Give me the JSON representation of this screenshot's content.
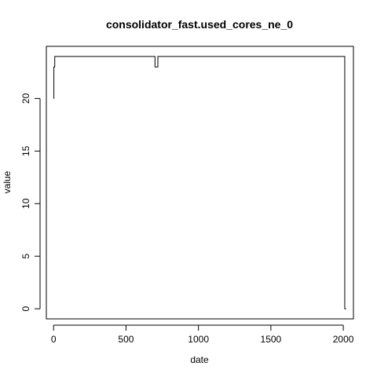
{
  "chart_data": {
    "type": "line",
    "title": "consolidator_fast.used_cores_ne_0",
    "xlabel": "date",
    "ylabel": "value",
    "xlim": [
      -50,
      2070
    ],
    "ylim": [
      -0.96,
      24.96
    ],
    "x_ticks": [
      0,
      500,
      1000,
      1500,
      2000
    ],
    "y_ticks": [
      0,
      5,
      10,
      15,
      20
    ],
    "grid": false,
    "legend": "none",
    "line_style": "step",
    "series": [
      {
        "x": [
          0,
          2,
          8,
          700,
          720,
          2000,
          2010,
          2020
        ],
        "y": [
          20,
          23,
          24,
          23,
          24,
          24,
          0,
          0
        ]
      }
    ]
  }
}
